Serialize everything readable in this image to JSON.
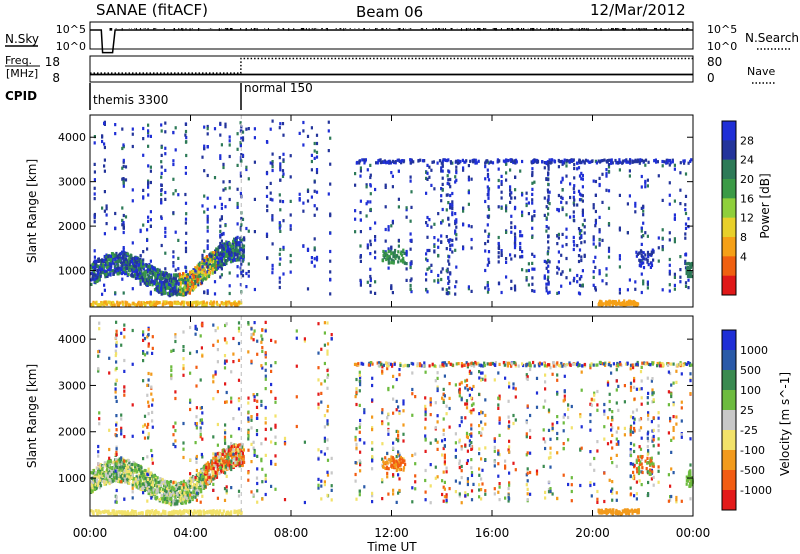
{
  "header": {
    "station": "SANAE (fitACF)",
    "beam": "Beam 06",
    "date": "12/Mar/2012"
  },
  "panel_labels": {
    "nsky": "N.Sky",
    "nsearch": "N.Search",
    "freq_line1": "Freq.",
    "freq_line2": "[MHz]",
    "nave": "Nave",
    "cpid": "CPID"
  },
  "cpid_modes": [
    {
      "label": "themis 3300",
      "start_hour": 0
    },
    {
      "label": "normal 150",
      "start_hour": 6.0
    }
  ],
  "colors": {
    "power_scale": [
      "#1f2fd6",
      "#23349b",
      "#2d7a57",
      "#3b9a46",
      "#8fcf3b",
      "#e8d02a",
      "#f5a017",
      "#f06010",
      "#e01818"
    ],
    "velocity_scale": [
      "#1f2fd6",
      "#2a5aa8",
      "#3a8a50",
      "#6dbb3f",
      "#c8c8c8",
      "#f2e26a",
      "#f29a1c",
      "#f25c12",
      "#e31a1a"
    ]
  },
  "chart_data": [
    {
      "type": "line",
      "name_label": "N.Sky",
      "right_label": "N.Search",
      "y_scale": "log",
      "ytick_labels_left": [
        "10^5",
        "10^0"
      ],
      "ytick_labels_right": [
        "10^5",
        "10^0"
      ],
      "x_hours": [
        0,
        0.35,
        0.45,
        0.5,
        0.55,
        0.9,
        1.0,
        24
      ],
      "nsky": [
        5,
        5,
        5,
        0.3,
        0.3,
        0.3,
        5,
        5
      ]
    },
    {
      "type": "line",
      "name_label": "Freq. [MHz]",
      "right_label": "Nave",
      "ytick_labels_left": [
        "18",
        "8"
      ],
      "ytick_labels_right": [
        "80",
        "0"
      ],
      "freq_hours": [
        0,
        0.35,
        6.0,
        24
      ],
      "freq_mhz": [
        10.5,
        10.5,
        10.5,
        10.5
      ],
      "nave_hours": [
        0,
        0.35,
        6.0,
        6.01,
        24
      ],
      "nave": [
        25,
        25,
        25,
        78,
        78
      ]
    },
    {
      "type": "heatmap",
      "quantity": "Power",
      "ylabel": "Slant Range [km]",
      "colorbar_label": "Power [dB]",
      "colorbar_ticks": [
        "28",
        "24",
        "20",
        "16",
        "12",
        "8",
        "4"
      ],
      "ylim": [
        180,
        4500
      ],
      "yticks": [
        "4000",
        "3000",
        "2000",
        "1000"
      ],
      "xlim_hours": [
        0,
        24
      ]
    },
    {
      "type": "heatmap",
      "quantity": "Velocity",
      "ylabel": "Slant Range [km]",
      "xlabel": "Time UT",
      "colorbar_label": "Velocity [m s^-1]",
      "colorbar_ticks": [
        "1000",
        "500",
        "100",
        "25",
        "-25",
        "-100",
        "-500",
        "-1000"
      ],
      "ylim": [
        180,
        4500
      ],
      "yticks": [
        "4000",
        "3000",
        "2000",
        "1000"
      ],
      "xticks": [
        "00:00",
        "04:00",
        "08:00",
        "12:00",
        "16:00",
        "20:00",
        "00:00"
      ],
      "xlim_hours": [
        0,
        24
      ]
    }
  ]
}
